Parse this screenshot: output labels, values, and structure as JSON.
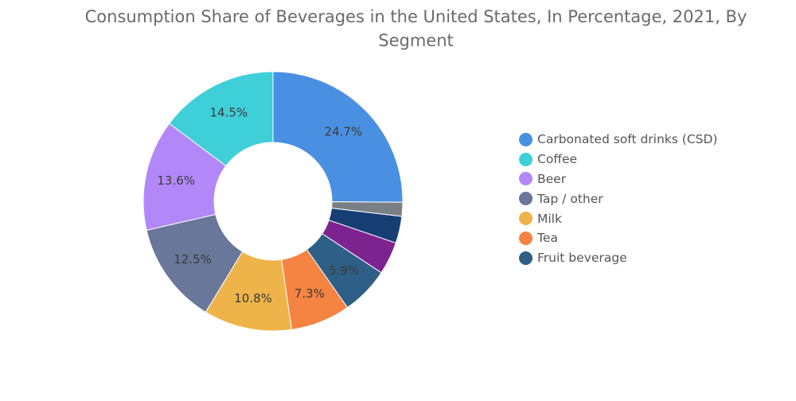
{
  "chart_data": {
    "type": "pie",
    "donut": true,
    "title": "Consumption Share of Beverages in the United States, In Percentage, 2021, By Segment",
    "unit": "%",
    "slices": [
      {
        "name": "Carbonated soft drinks (CSD)",
        "value": 24.7,
        "label": "24.7%",
        "color": "#4a90e2",
        "legend": true
      },
      {
        "name": "",
        "value": 1.7,
        "label": "",
        "color": "#7a7f85",
        "legend": false
      },
      {
        "name": "",
        "value": 3.3,
        "label": "",
        "color": "#163e73",
        "legend": false
      },
      {
        "name": "",
        "value": 4.0,
        "label": "",
        "color": "#7d2390",
        "legend": false
      },
      {
        "name": "Fruit beverage",
        "value": 5.9,
        "label": "5.9%",
        "color": "#2e5f86",
        "legend": true
      },
      {
        "name": "Tea",
        "value": 7.3,
        "label": "7.3%",
        "color": "#f58342",
        "legend": true
      },
      {
        "name": "Milk",
        "value": 10.8,
        "label": "10.8%",
        "color": "#eeb449",
        "legend": true
      },
      {
        "name": "Tap / other",
        "value": 12.5,
        "label": "12.5%",
        "color": "#68779a",
        "legend": true
      },
      {
        "name": "Beer",
        "value": 13.6,
        "label": "13.6%",
        "color": "#b288f8",
        "legend": true
      },
      {
        "name": "Coffee",
        "value": 14.5,
        "label": "14.5%",
        "color": "#3fcfd9",
        "legend": true
      }
    ],
    "legend_order": [
      "Carbonated soft drinks (CSD)",
      "Coffee",
      "Beer",
      "Tap / other",
      "Milk",
      "Tea",
      "Fruit beverage"
    ],
    "legend_position": "right"
  }
}
